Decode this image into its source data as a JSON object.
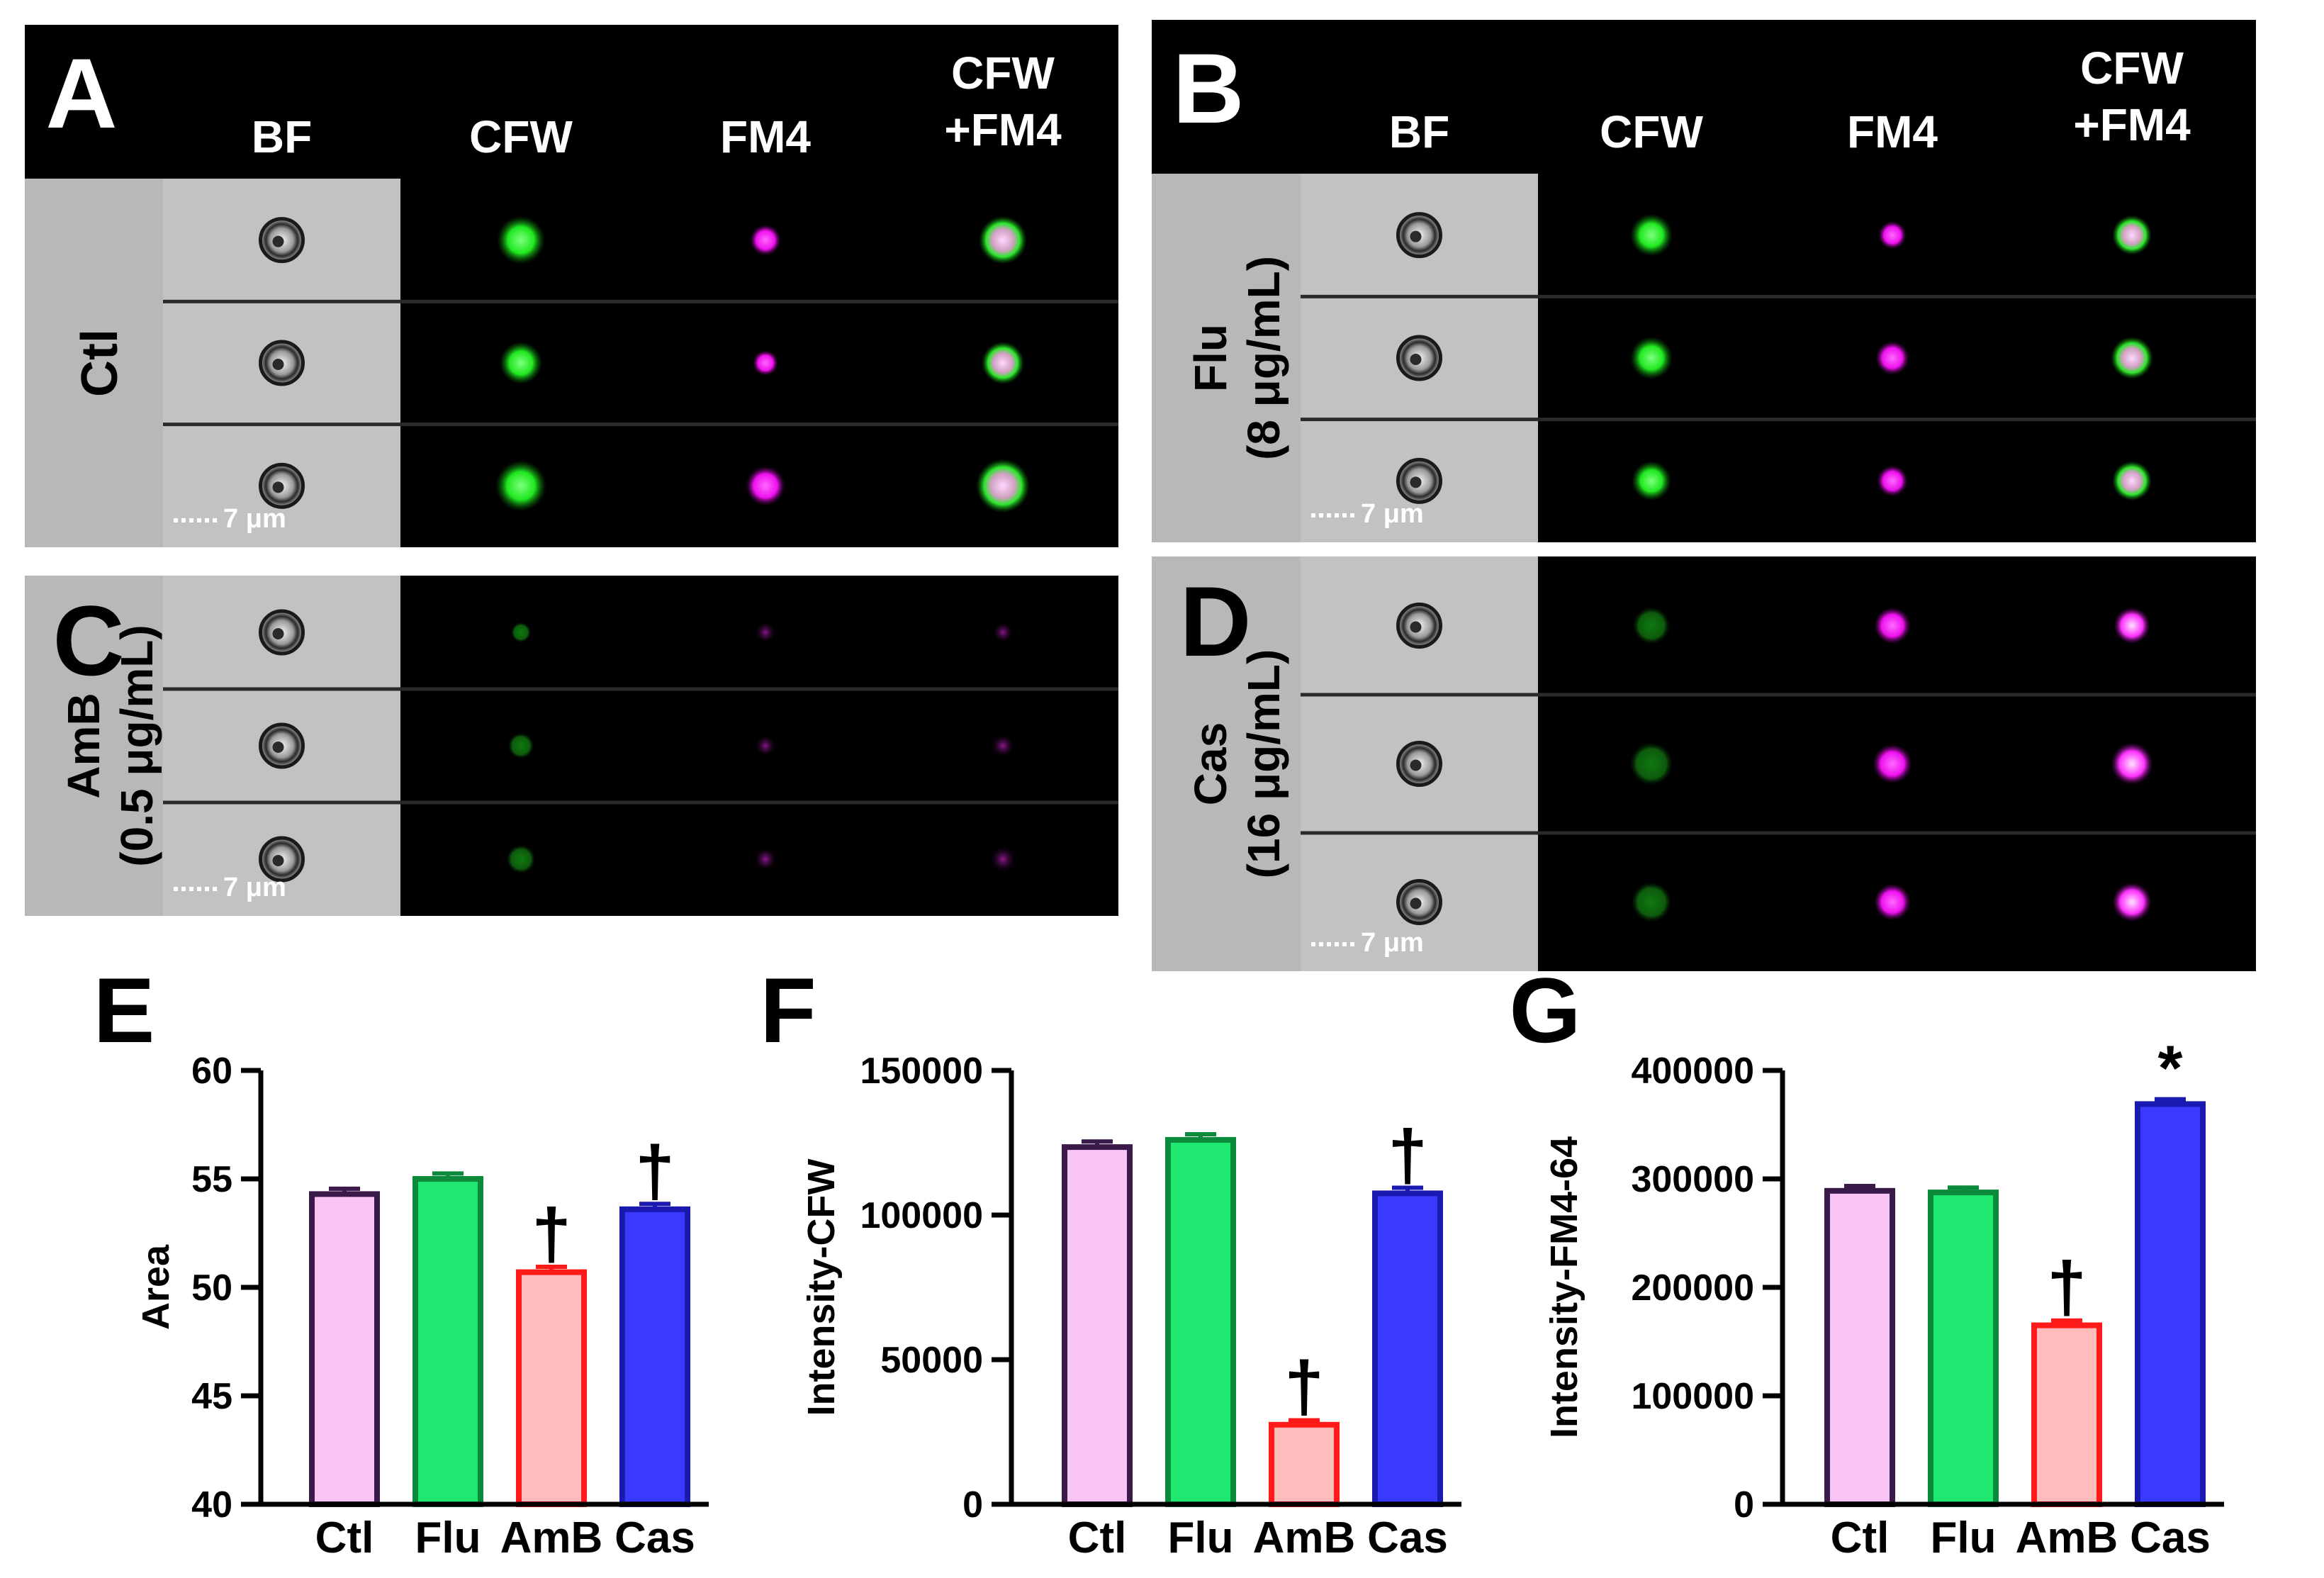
{
  "figure": {
    "column_headers": [
      "BF",
      "CFW",
      "FM4",
      "CFW",
      "+FM4"
    ],
    "scale_bar": "7 μm",
    "panels": [
      {
        "letter": "A",
        "row_label": [
          "Ctl"
        ]
      },
      {
        "letter": "B",
        "row_label": [
          "Flu",
          "(8 μg/mL)"
        ]
      },
      {
        "letter": "C",
        "row_label": [
          "AmB",
          "(0.5 μg/mL)"
        ]
      },
      {
        "letter": "D",
        "row_label": [
          "Cas",
          "(16 μg/mL)"
        ]
      }
    ],
    "colors": {
      "ctl_fill": "#f8c4f4",
      "ctl_edge": "#3a1a4a",
      "flu_fill": "#1ee870",
      "flu_edge": "#0a8a3a",
      "amb_fill": "#ffbcbc",
      "amb_edge": "#ff1a1a",
      "cas_fill": "#3a3aff",
      "cas_edge": "#1a1ab0",
      "cfw_green": "#1fe81f",
      "fm4_magenta": "#ff1aff"
    }
  },
  "chart_data": [
    {
      "panel": "E",
      "type": "bar",
      "categories": [
        "Ctl",
        "Flu",
        "AmB",
        "Cas"
      ],
      "values": [
        54.3,
        55.0,
        50.7,
        53.6
      ],
      "errors": [
        0.15,
        0.15,
        0.15,
        0.15
      ],
      "annotations": [
        "",
        "",
        "†",
        "†"
      ],
      "ylabel": "Area",
      "ylim": [
        40,
        60
      ],
      "yticks": [
        40,
        45,
        50,
        55,
        60
      ],
      "ytick_labels": [
        "40",
        "45",
        "50",
        "55",
        "60"
      ]
    },
    {
      "panel": "F",
      "type": "bar",
      "categories": [
        "Ctl",
        "Flu",
        "AmB",
        "Cas"
      ],
      "values": [
        123500,
        126000,
        27500,
        107500
      ],
      "errors": [
        1200,
        1200,
        800,
        1200
      ],
      "annotations": [
        "",
        "",
        "†",
        "†"
      ],
      "ylabel": "Intensity-CFW",
      "ylim": [
        0,
        150000
      ],
      "yticks": [
        0,
        50000,
        100000,
        150000
      ],
      "ytick_labels": [
        "0",
        "50000",
        "100000",
        "150000"
      ]
    },
    {
      "panel": "G",
      "type": "bar",
      "categories": [
        "Ctl",
        "Flu",
        "AmB",
        "Cas"
      ],
      "values": [
        289000,
        287500,
        165000,
        369000
      ],
      "errors": [
        2500,
        2500,
        2500,
        2500
      ],
      "annotations": [
        "",
        "",
        "†",
        "*"
      ],
      "ylabel": "Intensity-FM4-64",
      "ylim": [
        0,
        400000
      ],
      "yticks": [
        0,
        100000,
        200000,
        300000,
        400000
      ],
      "ytick_labels": [
        "0",
        "100000",
        "200000",
        "300000",
        "400000"
      ]
    }
  ]
}
